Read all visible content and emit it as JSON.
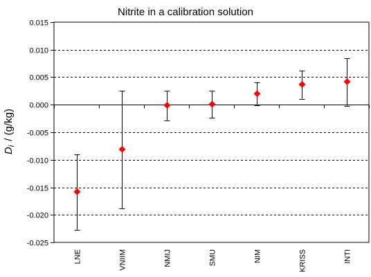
{
  "chart_data": {
    "type": "scatter",
    "title": "Nitrite in a calibration solution",
    "ylabel_symbol": "D",
    "ylabel_subscript": "i",
    "ylabel_unit": "/ (g/kg)",
    "xlabel": "",
    "ylim": [
      -0.025,
      0.015
    ],
    "yticks": [
      {
        "value": 0.015,
        "label": "0.015"
      },
      {
        "value": 0.01,
        "label": "0.010"
      },
      {
        "value": 0.005,
        "label": "0.005"
      },
      {
        "value": 0.0,
        "label": "0.000"
      },
      {
        "value": -0.005,
        "label": "-0.005"
      },
      {
        "value": -0.01,
        "label": "-0.010"
      },
      {
        "value": -0.015,
        "label": "-0.015"
      },
      {
        "value": -0.02,
        "label": "-0.020"
      },
      {
        "value": -0.025,
        "label": "-0.025"
      }
    ],
    "grid": "horizontal-dashed",
    "legend": "none",
    "categories": [
      "LNE",
      "VNIIM",
      "NMIJ",
      "SMU",
      "NIM",
      "KRISS",
      "INTI"
    ],
    "values": [
      -0.0158,
      -0.0081,
      -0.0001,
      0.0001,
      0.002,
      0.0037,
      0.0042
    ],
    "error_low": [
      -0.0227,
      -0.0188,
      -0.0028,
      -0.0024,
      -0.0001,
      0.0011,
      -0.0002
    ],
    "error_high": [
      -0.009,
      0.0025,
      0.0025,
      0.0025,
      0.0041,
      0.0062,
      0.0085
    ],
    "marker_color": "#ff0000",
    "errorbar_color": "#000000"
  }
}
